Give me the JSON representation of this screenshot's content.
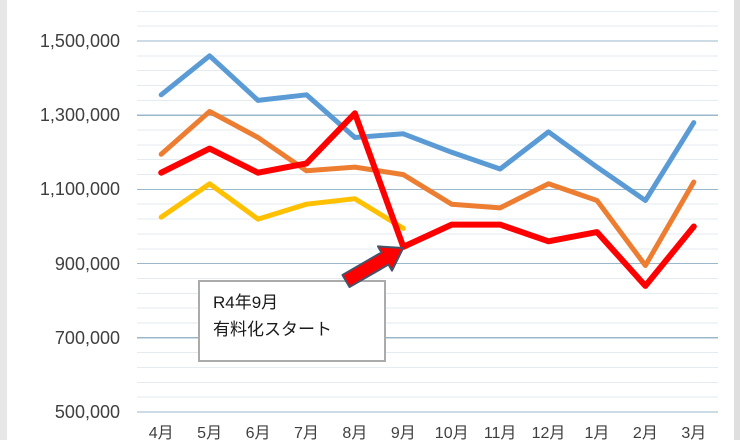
{
  "chart_data": {
    "type": "line",
    "categories": [
      "4月",
      "5月",
      "6月",
      "7月",
      "8月",
      "9月",
      "10月",
      "11月",
      "12月",
      "1月",
      "2月",
      "3月"
    ],
    "series": [
      {
        "name": "blue",
        "color": "#5B9BD5",
        "values": [
          1355000,
          1460000,
          1340000,
          1355000,
          1240000,
          1250000,
          1200000,
          1155000,
          1255000,
          1160000,
          1070000,
          1280000
        ]
      },
      {
        "name": "orange",
        "color": "#ED7D31",
        "values": [
          1195000,
          1310000,
          1240000,
          1150000,
          1160000,
          1140000,
          1060000,
          1050000,
          1115000,
          1070000,
          895000,
          1120000
        ]
      },
      {
        "name": "yellow",
        "color": "#FFC000",
        "values": [
          1025000,
          1115000,
          1020000,
          1060000,
          1075000,
          995000
        ]
      },
      {
        "name": "red",
        "color": "#FF0000",
        "values": [
          1145000,
          1210000,
          1145000,
          1170000,
          1305000,
          945000,
          1005000,
          1005000,
          960000,
          985000,
          840000,
          1000000
        ]
      }
    ],
    "y_ticks": [
      "1,500,000",
      "1,300,000",
      "1,100,000",
      "900,000",
      "700,000",
      "500,000"
    ],
    "y_tick_values": [
      1500000,
      1300000,
      1100000,
      900000,
      700000,
      500000
    ],
    "ylim": [
      500000,
      1500000
    ],
    "major_unit": 200000,
    "minor_unit": 40000,
    "grid": "major+minor horizontal",
    "legend": "none",
    "title": "",
    "xlabel": "",
    "ylabel": "",
    "annotation": {
      "line1": "R4年9月",
      "line2": "有料化スタート"
    },
    "colors": {
      "major_grid": "#9bb7ca",
      "minor_grid": "#e4ebf1",
      "axis_label": "#3f3f3f",
      "annotation_border": "#ababab",
      "arrow_fill": "#FF0000",
      "arrow_outline": "#44546A"
    }
  }
}
